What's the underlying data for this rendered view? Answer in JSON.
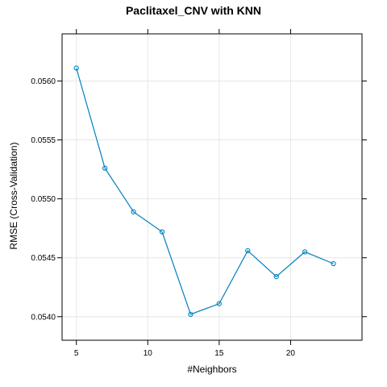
{
  "chart_data": {
    "type": "line",
    "title": "Paclitaxel_CNV with KNN",
    "xlabel": "#Neighbors",
    "ylabel": "RMSE (Cross-Validation)",
    "xlim": [
      4,
      25
    ],
    "ylim": [
      0.0538,
      0.0564
    ],
    "xticks": [
      5,
      10,
      15,
      20
    ],
    "yticks": [
      0.054,
      0.0545,
      0.055,
      0.0555,
      0.056
    ],
    "ytick_labels": [
      "0.0540",
      "0.0545",
      "0.0550",
      "0.0555",
      "0.0560"
    ],
    "grid": true,
    "series": [
      {
        "color": "#0080c0",
        "x": [
          5,
          7,
          9,
          11,
          13,
          15,
          17,
          19,
          21,
          23
        ],
        "y": [
          0.05611,
          0.05526,
          0.05489,
          0.05472,
          0.05402,
          0.05411,
          0.05456,
          0.05434,
          0.05455,
          0.05445
        ]
      }
    ]
  }
}
